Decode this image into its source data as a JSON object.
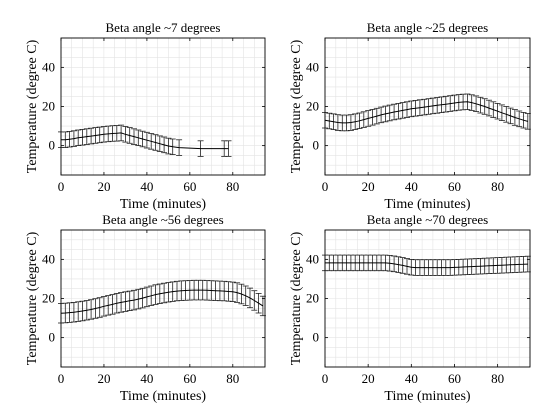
{
  "chart_data": [
    {
      "type": "line",
      "title": "Beta angle ~7 degrees",
      "xlabel": "Time (minutes)",
      "ylabel": "Temperature (degree C)",
      "xlim": [
        0,
        95
      ],
      "ylim": [
        -15,
        55
      ],
      "xticks": [
        "0",
        "20",
        "40",
        "60",
        "80"
      ],
      "yticks": [
        "0",
        "20",
        "40"
      ],
      "grid": true,
      "errorbars": true,
      "series": [
        {
          "x": [
            0,
            2,
            4,
            6,
            8,
            10,
            12,
            14,
            16,
            18,
            20,
            22,
            24,
            26,
            28,
            30,
            32,
            34,
            36,
            38,
            40,
            42,
            44,
            46,
            48,
            50,
            52,
            55,
            65,
            76,
            78
          ],
          "y": [
            3,
            3,
            3.3,
            3.6,
            4,
            4.3,
            4.6,
            4.9,
            5.2,
            5.5,
            5.8,
            6,
            6.2,
            6.3,
            6.5,
            5.8,
            5.2,
            4.6,
            4,
            3.4,
            2.8,
            2.2,
            1.6,
            1,
            0.4,
            -0.2,
            -0.6,
            -1,
            -1.5,
            -1.5,
            -1.5
          ],
          "err": [
            4,
            4,
            4,
            4,
            4,
            4,
            4,
            4,
            4,
            4,
            4,
            4,
            4,
            4,
            4,
            4,
            4,
            4,
            4,
            4,
            4,
            4,
            4,
            4,
            4,
            4,
            4,
            4,
            4,
            4,
            4
          ]
        }
      ]
    },
    {
      "type": "line",
      "title": "Beta angle ~25 degrees",
      "xlabel": "Time (minutes)",
      "ylabel": "Temperature (degree C)",
      "xlim": [
        0,
        95
      ],
      "ylim": [
        -15,
        55
      ],
      "xticks": [
        "0",
        "20",
        "40",
        "60",
        "80"
      ],
      "yticks": [
        "0",
        "20",
        "40"
      ],
      "grid": true,
      "errorbars": true,
      "series": [
        {
          "x": [
            0,
            2,
            4,
            6,
            8,
            10,
            12,
            14,
            16,
            18,
            20,
            22,
            24,
            26,
            28,
            30,
            32,
            34,
            36,
            38,
            40,
            42,
            44,
            46,
            48,
            50,
            52,
            54,
            56,
            58,
            60,
            62,
            64,
            66,
            68,
            70,
            72,
            74,
            76,
            78,
            80,
            82,
            84,
            86,
            88,
            90,
            92,
            94
          ],
          "y": [
            13,
            12.6,
            12.2,
            11.8,
            11.6,
            11.6,
            11.8,
            12.2,
            12.7,
            13.3,
            13.9,
            14.5,
            15.1,
            15.7,
            16.2,
            16.7,
            17.2,
            17.6,
            18,
            18.4,
            18.8,
            19.1,
            19.4,
            19.7,
            20,
            20.3,
            20.6,
            20.9,
            21.2,
            21.5,
            21.8,
            22.1,
            22.3,
            22.4,
            22,
            21.4,
            20.7,
            20,
            19.2,
            18.4,
            17.6,
            16.8,
            16,
            15.2,
            14.4,
            13.7,
            13,
            12.4
          ],
          "err": [
            4,
            4,
            4,
            4,
            4,
            4,
            4,
            4,
            4,
            4,
            4,
            4,
            4,
            4,
            4,
            4,
            4,
            4,
            4,
            4,
            4,
            4,
            4,
            4,
            4,
            4,
            4,
            4,
            4,
            4,
            4,
            4,
            4,
            4,
            4,
            4,
            4,
            4,
            4,
            4,
            4,
            4,
            4,
            4,
            4,
            4,
            4,
            4
          ]
        }
      ]
    },
    {
      "type": "line",
      "title": "Beta angle ~56 degrees",
      "xlabel": "Time (minutes)",
      "ylabel": "Temperature (degree C)",
      "xlim": [
        0,
        95
      ],
      "ylim": [
        -15,
        55
      ],
      "xticks": [
        "0",
        "20",
        "40",
        "60",
        "80"
      ],
      "yticks": [
        "0",
        "20",
        "40"
      ],
      "grid": true,
      "errorbars": true,
      "series": [
        {
          "x": [
            0,
            2,
            4,
            6,
            8,
            10,
            12,
            14,
            16,
            18,
            20,
            22,
            24,
            26,
            28,
            30,
            32,
            34,
            36,
            38,
            40,
            42,
            44,
            46,
            48,
            50,
            52,
            54,
            56,
            58,
            60,
            62,
            64,
            66,
            68,
            70,
            72,
            74,
            76,
            78,
            80,
            82,
            84,
            86,
            88,
            90,
            92,
            94
          ],
          "y": [
            12.5,
            12.6,
            12.8,
            13,
            13.3,
            13.6,
            14,
            14.4,
            14.9,
            15.4,
            16,
            16.5,
            17,
            17.6,
            18,
            18.4,
            18.8,
            19.2,
            19.7,
            20.2,
            20.8,
            21.4,
            22,
            22.4,
            22.8,
            23.2,
            23.5,
            23.8,
            24,
            24.1,
            24.2,
            24.3,
            24.3,
            24.3,
            24.2,
            24.1,
            24,
            23.9,
            23.8,
            23.6,
            23.4,
            23,
            22.3,
            21.4,
            20.3,
            19,
            17.6,
            16.2
          ],
          "err": [
            5,
            5,
            5,
            5,
            5,
            5,
            5,
            5,
            5,
            5,
            5,
            5,
            5,
            5,
            5,
            5,
            5,
            5,
            5,
            5,
            5,
            5,
            5,
            5,
            5,
            5,
            5,
            5,
            5,
            5,
            5,
            5,
            5,
            5,
            5,
            5,
            5,
            5,
            5,
            5,
            5,
            5,
            5,
            5,
            5,
            5,
            5,
            5
          ]
        }
      ]
    },
    {
      "type": "line",
      "title": "Beta angle ~70 degrees",
      "xlabel": "Time (minutes)",
      "ylabel": "Temperature (degree C)",
      "xlim": [
        0,
        95
      ],
      "ylim": [
        -15,
        55
      ],
      "xticks": [
        "0",
        "20",
        "40",
        "60",
        "80"
      ],
      "yticks": [
        "0",
        "20",
        "40"
      ],
      "grid": true,
      "errorbars": true,
      "series": [
        {
          "x": [
            0,
            2,
            4,
            6,
            8,
            10,
            12,
            14,
            16,
            18,
            20,
            22,
            24,
            26,
            28,
            30,
            32,
            34,
            36,
            38,
            40,
            42,
            44,
            46,
            48,
            50,
            52,
            54,
            56,
            58,
            60,
            62,
            64,
            66,
            68,
            70,
            72,
            74,
            76,
            78,
            80,
            82,
            84,
            86,
            88,
            90,
            92,
            94
          ],
          "y": [
            38.2,
            38.2,
            38.2,
            38.2,
            38.2,
            38.2,
            38.2,
            38.2,
            38.2,
            38.2,
            38.2,
            38.2,
            38.2,
            38.2,
            38.2,
            38,
            37.7,
            37.3,
            36.9,
            36.4,
            36,
            35.8,
            35.8,
            35.8,
            35.8,
            35.8,
            35.8,
            35.8,
            35.8,
            35.8,
            35.9,
            36,
            36.1,
            36.2,
            36.3,
            36.4,
            36.5,
            36.6,
            36.7,
            36.8,
            36.9,
            37,
            37.1,
            37.2,
            37.3,
            37.4,
            37.5,
            37.6
          ],
          "err": [
            4,
            4,
            4,
            4,
            4,
            4,
            4,
            4,
            4,
            4,
            4,
            4,
            4,
            4,
            4,
            4,
            4,
            4,
            4,
            4,
            4,
            4,
            4,
            4,
            4,
            4,
            4,
            4,
            4,
            4,
            4,
            4,
            4,
            4,
            4,
            4,
            4,
            4,
            4,
            4,
            4,
            4,
            4,
            4,
            4,
            4,
            4,
            4
          ]
        }
      ]
    }
  ]
}
